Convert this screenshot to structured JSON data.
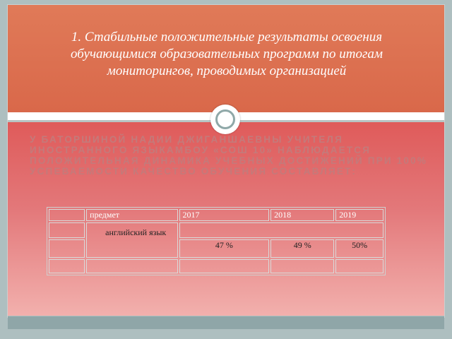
{
  "slide": {
    "title": "1. Стабильные положительные результаты освоения обучающимися образовательных программ по итогам мониторингов, проводимых организацией",
    "body": "У Баторшиной Надии Джиганшаевны учителя иностранного языкамбоу «СОШ 10» наблюдается положительная динамика учебных достижений при 100% успеваемости качество обучения составляет:"
  },
  "table": {
    "headers": [
      "",
      "предмет",
      "2017",
      "2018",
      "2019"
    ],
    "subject": "английский язык",
    "values": [
      "47 %",
      "49 %",
      "50%"
    ]
  }
}
